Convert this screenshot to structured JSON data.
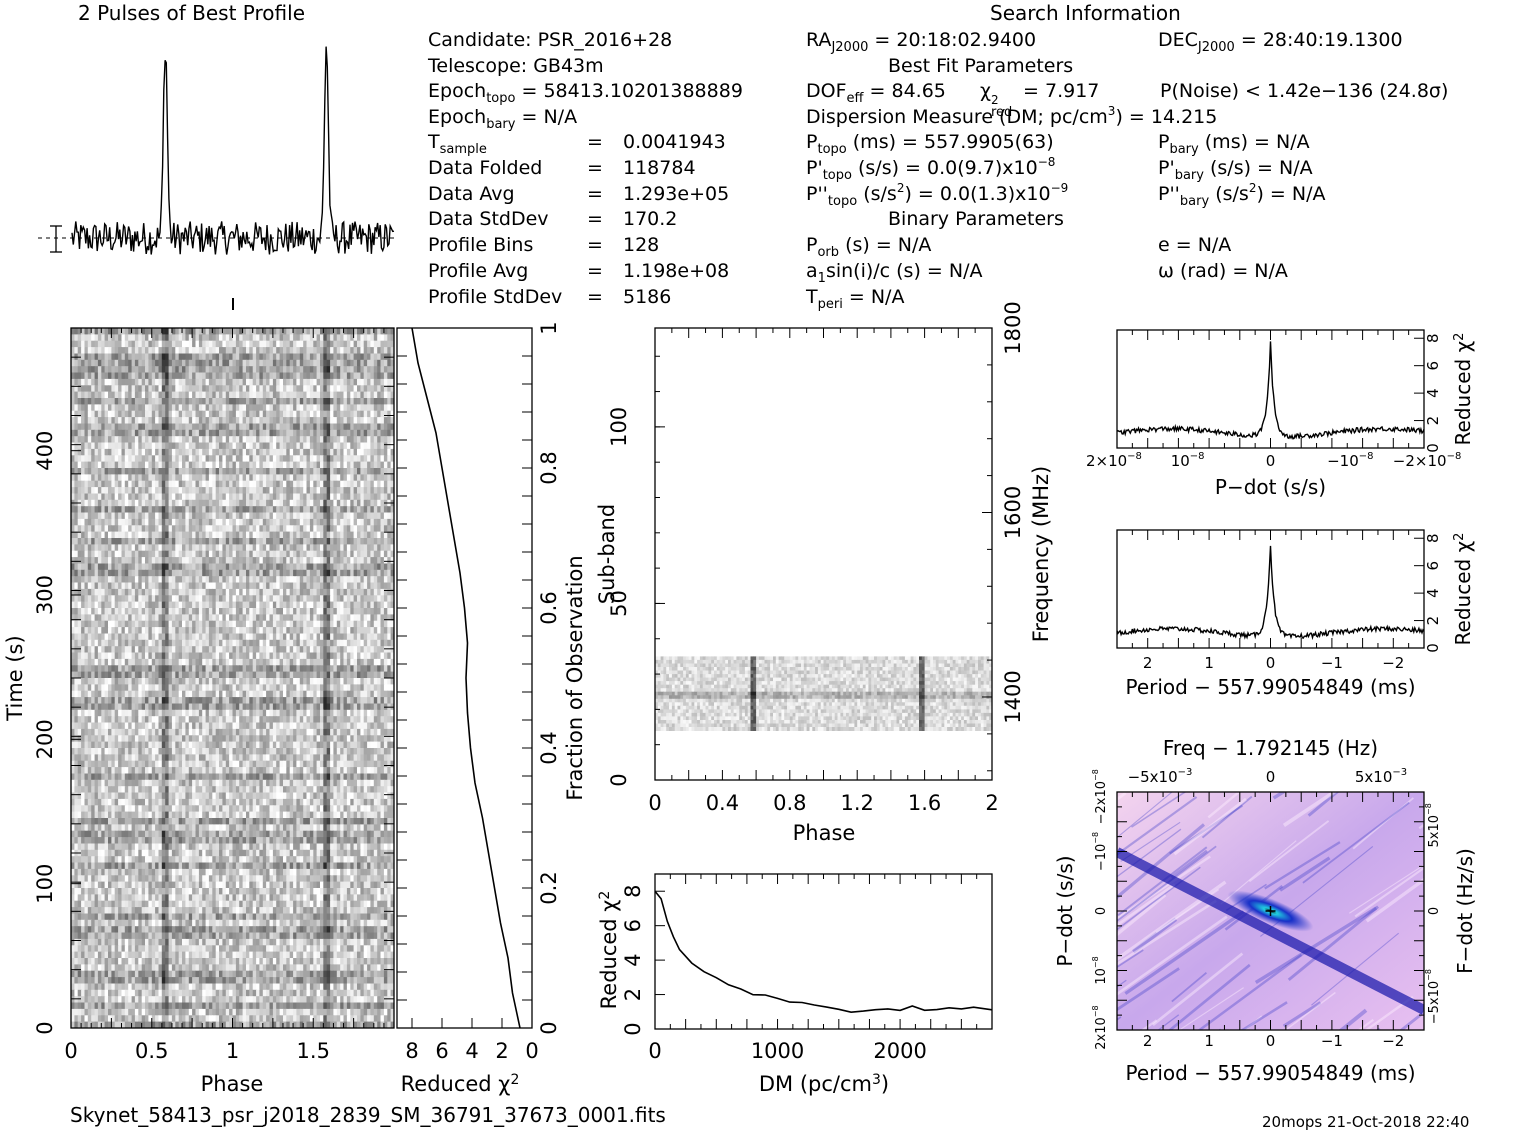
{
  "profile_title": "2 Pulses of Best Profile",
  "search_title": "Search Information",
  "info_left": [
    "Candidate:  PSR_2016+28",
    "Telescope:  GB43m"
  ],
  "epoch_topo": {
    "label": "Epoch",
    "sub": "topo",
    "value": " = 58413.10201388889"
  },
  "epoch_bary": {
    "label": "Epoch",
    "sub": "bary",
    "value": " = N/A"
  },
  "stats": [
    {
      "label": "T",
      "sub": "sample",
      "value": "0.0041943"
    },
    {
      "label": "Data Folded",
      "sub": "",
      "value": "118784"
    },
    {
      "label": "Data Avg",
      "sub": "",
      "value": "1.293e+05"
    },
    {
      "label": "Data StdDev",
      "sub": "",
      "value": "170.2"
    },
    {
      "label": "Profile Bins",
      "sub": "",
      "value": "128"
    },
    {
      "label": "Profile Avg",
      "sub": "",
      "value": "1.198e+08"
    },
    {
      "label": "Profile StdDev",
      "sub": "",
      "value": "5186"
    }
  ],
  "eq": "=",
  "ra": {
    "label": "RA",
    "sub": "J2000",
    "value": " = 20:18:02.9400"
  },
  "dec": {
    "label": "DEC",
    "sub": "J2000",
    "value": " = 28:40:19.1300"
  },
  "best_fit_title": "Best Fit Parameters",
  "dof": {
    "label": "DOF",
    "sub": "eff",
    "value": " = 84.65"
  },
  "chi": {
    "label": "χ",
    "sup": "2",
    "sub": "red",
    "value": " = 7.917"
  },
  "pnoise": "P(Noise) < 1.42e−136  (24.8σ)",
  "dm_line": {
    "pre": "Dispersion Measure (DM; pc/cm",
    "sup": "3",
    "post": ") = 14.215"
  },
  "ptopo": {
    "label": "P",
    "sub": "topo",
    "value": " (ms) =  557.9905(63)"
  },
  "pbary": {
    "label": "P",
    "sub": "bary",
    "value": " (ms) = N/A"
  },
  "pdtopo": {
    "label": "P'",
    "sub": "topo",
    "value": " (s/s) = 0.0(9.7)x10",
    "sup": "−8"
  },
  "pdbary": {
    "label": "P'",
    "sub": "bary",
    "value": " (s/s) = N/A"
  },
  "pddtopo": {
    "label": "P''",
    "sub": "topo",
    "value": " (s/s",
    "sup": "2",
    "post": ") = 0.0(1.3)x10",
    "sup2": "−9"
  },
  "pddbary": {
    "label": "P''",
    "sub": "bary",
    "value": " (s/s",
    "sup": "2",
    "post": ") = N/A"
  },
  "binary_title": "Binary Parameters",
  "porb": {
    "label": "P",
    "sub": "orb",
    "value": " (s) = N/A"
  },
  "ecc": "e = N/A",
  "asini": {
    "pre": "a",
    "sub": "1",
    "post": "sin(i)/c (s) = N/A"
  },
  "omega": "ω (rad) = N/A",
  "tperi": {
    "label": "T",
    "sub": "peri",
    "value": " = N/A"
  },
  "filename": "Skynet_58413_psr_j2018_2839_SM_36791_37673_0001.fits",
  "footer_right": "20mops 21-Oct-2018 22:40",
  "colors": {
    "ink": "#000000",
    "heat_low": "#f0c8e8",
    "heat_mid": "#3030d0",
    "heat_peak": "#20c0e0"
  },
  "chart_data": [
    {
      "id": "profile",
      "type": "line",
      "title": "2 Pulses of Best Profile",
      "x": [
        0.0,
        2.0
      ],
      "pulse_phases": [
        0.58,
        1.58
      ],
      "peak_height": 1.0,
      "baseline": 0.0
    },
    {
      "id": "time-phase",
      "type": "heatmap",
      "xlabel": "Phase",
      "ylabel": "Time (s)",
      "xticks": [
        "0",
        "0.5",
        "1",
        "1.5"
      ],
      "xlim": [
        0,
        2
      ],
      "yticks": [
        "0",
        "100",
        "200",
        "300",
        "400"
      ],
      "ylim": [
        0,
        485
      ],
      "pulse_phases": [
        0.58,
        1.58
      ]
    },
    {
      "id": "chi-time",
      "type": "line",
      "xlabel": "Reduced χ",
      "xlabel_sup": "2",
      "ylabel": "Fraction of Observation",
      "xticks": [
        "8",
        "6",
        "4",
        "2",
        "0"
      ],
      "xlim": [
        9,
        0
      ],
      "yticks": [
        "0",
        "0.2",
        "0.4",
        "0.6",
        "0.8",
        "1"
      ],
      "ylim": [
        0,
        1
      ],
      "points": [
        [
          0.0,
          0.8
        ],
        [
          0.02,
          1.0
        ],
        [
          0.05,
          1.3
        ],
        [
          0.1,
          1.6
        ],
        [
          0.15,
          2.1
        ],
        [
          0.2,
          2.5
        ],
        [
          0.25,
          2.9
        ],
        [
          0.3,
          3.3
        ],
        [
          0.35,
          3.8
        ],
        [
          0.4,
          4.1
        ],
        [
          0.45,
          4.3
        ],
        [
          0.5,
          4.4
        ],
        [
          0.55,
          4.3
        ],
        [
          0.6,
          4.5
        ],
        [
          0.65,
          4.8
        ],
        [
          0.7,
          5.2
        ],
        [
          0.75,
          5.6
        ],
        [
          0.8,
          6.0
        ],
        [
          0.85,
          6.4
        ],
        [
          0.9,
          7.0
        ],
        [
          0.95,
          7.6
        ],
        [
          1.0,
          8.0
        ]
      ]
    },
    {
      "id": "subband",
      "type": "heatmap",
      "xlabel": "Phase",
      "ylabel": "Sub-band",
      "y2label": "Frequency (MHz)",
      "xticks": [
        "0",
        "0.4",
        "0.8",
        "1.2",
        "1.6",
        "2"
      ],
      "xlim": [
        0,
        2
      ],
      "yticks": [
        "0",
        "50",
        "100"
      ],
      "ylim": [
        0,
        128
      ],
      "y2ticks": [
        "1400",
        "1600",
        "1800"
      ],
      "y2lim": [
        1310,
        1800
      ],
      "band": [
        14,
        35
      ],
      "pulse_phases": [
        0.58,
        1.58
      ]
    },
    {
      "id": "dm",
      "type": "line",
      "xlabel": "DM (pc/cm",
      "xlabel_sup": "3",
      "xlabel_post": ")",
      "ylabel": "Reduced χ",
      "ylabel_sup": "2",
      "xticks": [
        "0",
        "1000",
        "2000"
      ],
      "xlim": [
        0,
        2750
      ],
      "yticks": [
        "0",
        "2",
        "4",
        "6",
        "8"
      ],
      "ylim": [
        0,
        9
      ],
      "points": [
        [
          0,
          8.0
        ],
        [
          50,
          7.6
        ],
        [
          100,
          6.3
        ],
        [
          150,
          5.3
        ],
        [
          200,
          4.6
        ],
        [
          300,
          3.8
        ],
        [
          400,
          3.4
        ],
        [
          500,
          3.0
        ],
        [
          600,
          2.6
        ],
        [
          700,
          2.3
        ],
        [
          800,
          2.0
        ],
        [
          900,
          1.9
        ],
        [
          1000,
          1.8
        ],
        [
          1100,
          1.6
        ],
        [
          1200,
          1.5
        ],
        [
          1300,
          1.4
        ],
        [
          1400,
          1.3
        ],
        [
          1500,
          1.2
        ],
        [
          1600,
          1.0
        ],
        [
          1700,
          1.1
        ],
        [
          1800,
          1.1
        ],
        [
          1900,
          1.2
        ],
        [
          2000,
          1.1
        ],
        [
          2100,
          1.3
        ],
        [
          2200,
          1.1
        ],
        [
          2300,
          1.2
        ],
        [
          2400,
          1.3
        ],
        [
          2500,
          1.2
        ],
        [
          2600,
          1.2
        ],
        [
          2750,
          1.1
        ]
      ]
    },
    {
      "id": "pdot",
      "type": "line",
      "xlabel": "P−dot (s/s)",
      "ylabel": "Reduced χ",
      "ylabel_sup": "2",
      "xticks": [
        "2×10",
        "10",
        "0",
        "−10",
        "−2×10"
      ],
      "xtick_sup": [
        "−8",
        "−8",
        "",
        "−8",
        "−8"
      ],
      "xlim": [
        2e-08,
        -2e-08
      ],
      "yticks": [
        "0",
        "2",
        "4",
        "6",
        "8"
      ],
      "ylim": [
        0,
        8.6
      ],
      "peak": {
        "x": 0,
        "y": 7.9
      },
      "baseline": 1.1
    },
    {
      "id": "period",
      "type": "line",
      "xlabel": "Period − 557.99054849 (ms)",
      "ylabel": "Reduced χ",
      "ylabel_sup": "2",
      "xticks": [
        "2",
        "1",
        "0",
        "−1",
        "−2"
      ],
      "xlim": [
        2.5,
        -2.5
      ],
      "yticks": [
        "0",
        "2",
        "4",
        "6",
        "8"
      ],
      "ylim": [
        0,
        8.6
      ],
      "peak": {
        "x": 0,
        "y": 7.9
      },
      "baseline": 1.1
    },
    {
      "id": "ppdot",
      "type": "heatmap",
      "title": "Freq − 1.792145 (Hz)",
      "xlabel": "Period − 557.99054849 (ms)",
      "ylabel": "P−dot (s/s)",
      "y2label": "F−dot (Hz/s)",
      "xticks": [
        "2",
        "1",
        "0",
        "−1",
        "−2"
      ],
      "xlim": [
        2.5,
        -2.5
      ],
      "top_ticks": [
        "−5x10",
        "0",
        "5x10"
      ],
      "top_tick_sup": [
        "−3",
        "",
        "−3"
      ],
      "yticks": [
        "2x10",
        "10",
        "0",
        "−10",
        "−2x10"
      ],
      "ytick_sup": [
        "−8",
        "−8",
        "",
        "−8",
        "−8"
      ],
      "y2ticks": [
        "5x10",
        "0",
        "−5x10"
      ],
      "y2tick_sup": [
        "−8",
        "",
        "−8"
      ],
      "peak": {
        "period": 0,
        "pdot": 0
      }
    }
  ]
}
